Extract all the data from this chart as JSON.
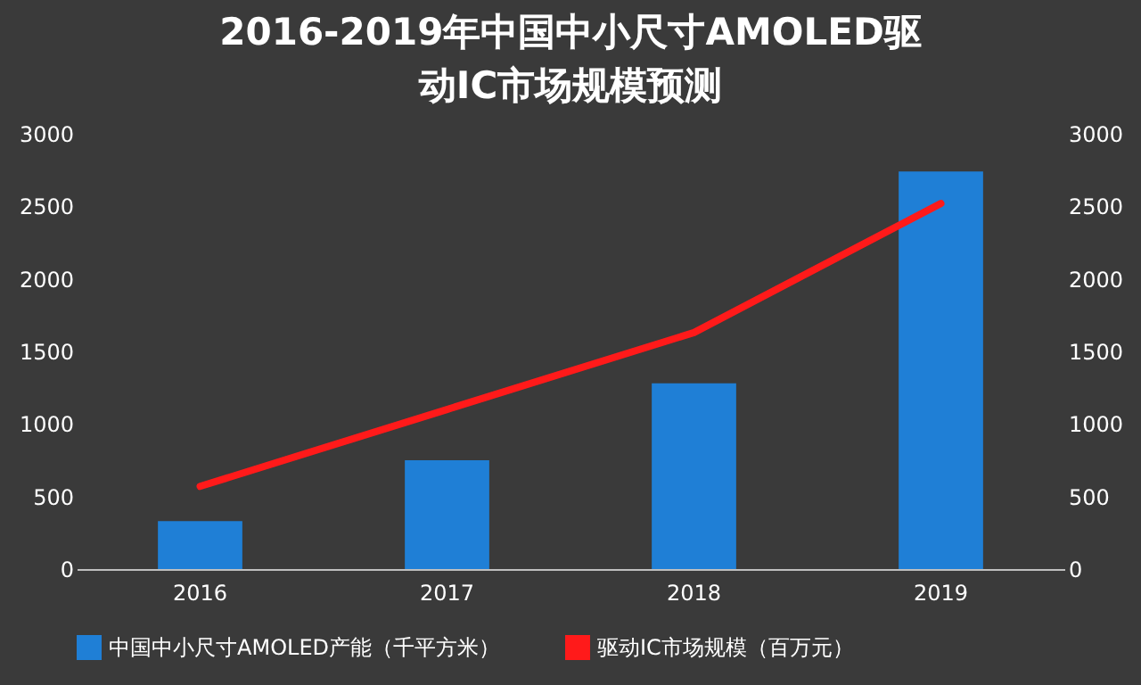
{
  "chart_data": {
    "type": "bar",
    "title": "2016-2019年中国中小尺寸AMOLED驱动IC市场规模预测",
    "categories": [
      "2016",
      "2017",
      "2018",
      "2019"
    ],
    "series": [
      {
        "name": "中国中小尺寸AMOLED产能（千平方米）",
        "color": "#1f7fd6",
        "values": [
          330,
          750,
          1280,
          2740
        ]
      },
      {
        "name": "驱动IC市场规模（百万元）",
        "color": "#ff1a1a",
        "type": "line",
        "axis": "y2",
        "values": [
          570,
          1100,
          1630,
          2520
        ]
      }
    ],
    "ylim": [
      0,
      3000
    ],
    "yticks": [
      0,
      500,
      1000,
      1500,
      2000,
      2500,
      3000
    ],
    "y2lim": [
      0,
      3000
    ],
    "y2ticks": [
      0,
      500,
      1000,
      1500,
      2000,
      2500,
      3000
    ],
    "grid": false,
    "legend": "bottom"
  }
}
